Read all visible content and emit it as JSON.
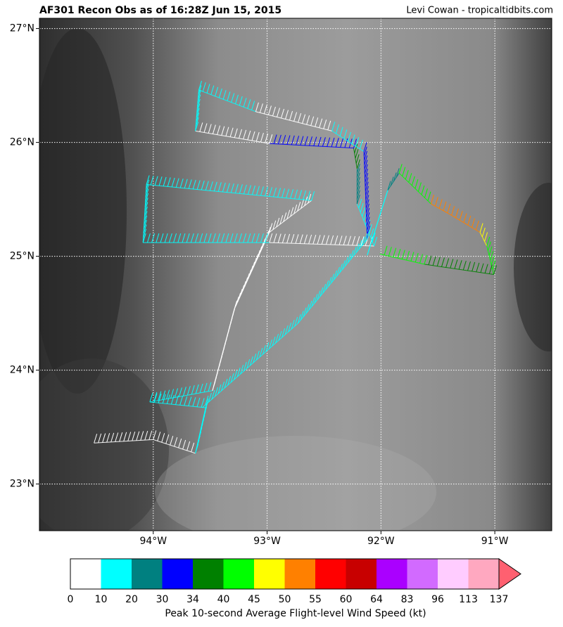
{
  "chart_data": {
    "type": "map",
    "title": "AF301 Recon Obs as of 16:28Z Jun 15, 2015",
    "credit": "Levi Cowan - tropicaltidbits.com",
    "xlim": [
      -95,
      -90.5
    ],
    "ylim": [
      22.59,
      27.09
    ],
    "xticks": [
      {
        "value": -94,
        "label": "94°W"
      },
      {
        "value": -93,
        "label": "93°W"
      },
      {
        "value": -92,
        "label": "92°W"
      },
      {
        "value": -91,
        "label": "91°W"
      }
    ],
    "yticks": [
      {
        "value": 23,
        "label": "23°N"
      },
      {
        "value": 24,
        "label": "24°N"
      },
      {
        "value": 25,
        "label": "25°N"
      },
      {
        "value": 26,
        "label": "26°N"
      },
      {
        "value": 27,
        "label": "27°N"
      }
    ],
    "grid": true,
    "legs": [
      [
        {
          "lon": -94.52,
          "lat": 23.36,
          "kt": 8
        },
        {
          "lon": -94.0,
          "lat": 23.39,
          "kt": 8
        },
        {
          "lon": -93.63,
          "lat": 23.27,
          "kt": 16
        },
        {
          "lon": -93.54,
          "lat": 23.67,
          "kt": 16
        },
        {
          "lon": -94.03,
          "lat": 23.72,
          "kt": 16
        },
        {
          "lon": -93.48,
          "lat": 23.82,
          "kt": 8
        },
        {
          "lon": -93.29,
          "lat": 24.53,
          "kt": 8
        },
        {
          "lon": -92.98,
          "lat": 25.21,
          "kt": 8
        },
        {
          "lon": -92.61,
          "lat": 25.49,
          "kt": 16
        },
        {
          "lon": -94.06,
          "lat": 25.63,
          "kt": 16
        },
        {
          "lon": -94.09,
          "lat": 25.12,
          "kt": 16
        },
        {
          "lon": -92.98,
          "lat": 25.12,
          "kt": 8
        },
        {
          "lon": -92.06,
          "lat": 25.09,
          "kt": 16
        },
        {
          "lon": -92.21,
          "lat": 25.46,
          "kt": 25
        },
        {
          "lon": -92.21,
          "lat": 25.77,
          "kt": 36
        },
        {
          "lon": -92.24,
          "lat": 25.95,
          "kt": 32
        },
        {
          "lon": -92.98,
          "lat": 25.99,
          "kt": 8
        },
        {
          "lon": -93.63,
          "lat": 26.1,
          "kt": 16
        },
        {
          "lon": -93.6,
          "lat": 26.46,
          "kt": 16
        },
        {
          "lon": -93.1,
          "lat": 26.27,
          "kt": 8
        },
        {
          "lon": -92.43,
          "lat": 26.1,
          "kt": 16
        },
        {
          "lon": -92.15,
          "lat": 25.92,
          "kt": 32
        },
        {
          "lon": -92.12,
          "lat": 25.15,
          "kt": 16
        },
        {
          "lon": -92.73,
          "lat": 24.41,
          "kt": 16
        },
        {
          "lon": -93.57,
          "lat": 23.67,
          "kt": 16
        }
      ],
      [
        {
          "lon": -92.12,
          "lat": 25.01,
          "kt": 16
        },
        {
          "lon": -91.94,
          "lat": 25.58,
          "kt": 25
        },
        {
          "lon": -91.84,
          "lat": 25.73,
          "kt": 40
        },
        {
          "lon": -91.56,
          "lat": 25.46,
          "kt": 52
        },
        {
          "lon": -91.38,
          "lat": 25.36,
          "kt": 50
        },
        {
          "lon": -91.13,
          "lat": 25.21,
          "kt": 47
        },
        {
          "lon": -91.07,
          "lat": 25.09,
          "kt": 40
        },
        {
          "lon": -91.01,
          "lat": 24.84,
          "kt": 36
        },
        {
          "lon": -91.62,
          "lat": 24.93,
          "kt": 40
        },
        {
          "lon": -92.01,
          "lat": 25.02,
          "kt": 32
        }
      ]
    ],
    "colorbar": {
      "bounds": [
        0,
        10,
        20,
        30,
        34,
        40,
        45,
        50,
        55,
        60,
        64,
        83,
        96,
        113,
        137
      ],
      "colors": [
        "#ffffff",
        "#00ffff",
        "#008080",
        "#0000ff",
        "#008000",
        "#00ff00",
        "#ffff00",
        "#ff8000",
        "#ff0000",
        "#c80000",
        "#aa00ff",
        "#d26aff",
        "#ffccff",
        "#ffa8c0"
      ],
      "extend_color": "#ff6070",
      "label": "Peak 10-second Average Flight-level Wind Speed (kt)"
    }
  }
}
